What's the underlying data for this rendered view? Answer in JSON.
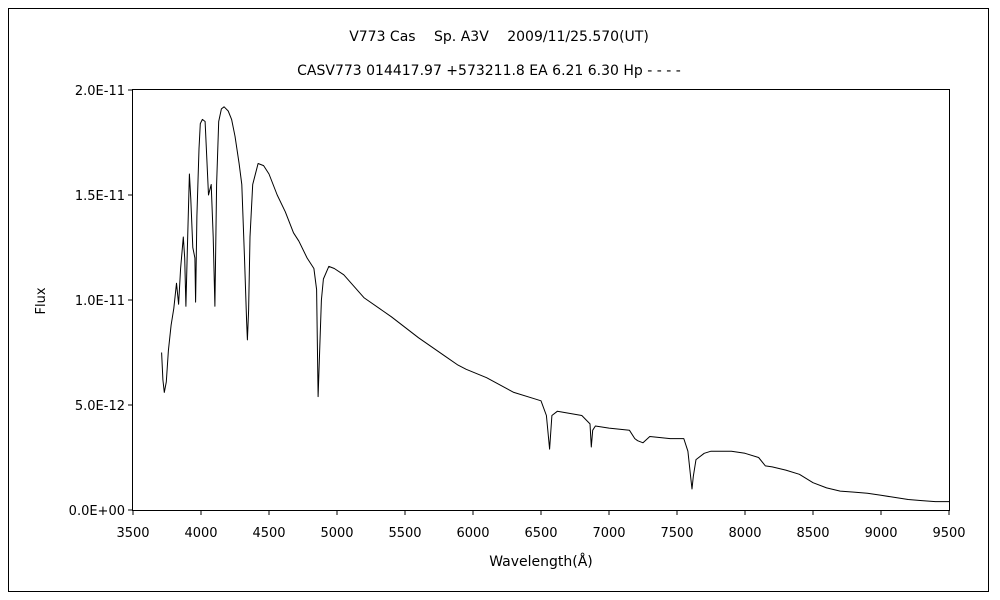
{
  "chart_data": {
    "type": "line",
    "title": "V773 Cas　 Sp. A3V　 2009/11/25.570(UT)",
    "subtitle": "CASV773 014417.97 +573211.8 EA 6.21 6.30 Hp - - - -",
    "xlabel": "Wavelength(Å)",
    "ylabel": "Flux",
    "xlim": [
      3500,
      9500
    ],
    "ylim": [
      0,
      2e-11
    ],
    "x_ticks": [
      3500,
      4000,
      4500,
      5000,
      5500,
      6000,
      6500,
      7000,
      7500,
      8000,
      8500,
      9000,
      9500
    ],
    "x_tick_labels": [
      "3500",
      "4000",
      "4500",
      "5000",
      "5500",
      "6000",
      "6500",
      "7000",
      "7500",
      "8000",
      "8500",
      "9000",
      "9500"
    ],
    "y_ticks": [
      0,
      5e-12,
      1e-11,
      1.5e-11,
      2e-11
    ],
    "y_tick_labels": [
      "0.0E+00",
      "5.0E-12",
      "1.0E-11",
      "1.5E-11",
      "2.0E-11"
    ],
    "grid": false,
    "legend": "none",
    "line_color": "#000000",
    "series": [
      {
        "x": [
          3710,
          3720,
          3730,
          3745,
          3760,
          3780,
          3800,
          3820,
          3835,
          3850,
          3870,
          3880,
          3889,
          3900,
          3915,
          3925,
          3940,
          3955,
          3960,
          3970,
          3985,
          3995,
          4010,
          4030,
          4055,
          4075,
          4090,
          4102,
          4115,
          4130,
          4150,
          4170,
          4200,
          4225,
          4250,
          4280,
          4300,
          4320,
          4335,
          4341,
          4350,
          4360,
          4380,
          4420,
          4460,
          4500,
          4560,
          4620,
          4680,
          4720,
          4780,
          4830,
          4850,
          4861,
          4872,
          4885,
          4900,
          4940,
          4980,
          5050,
          5200,
          5400,
          5600,
          5800,
          5890,
          5950,
          6100,
          6300,
          6450,
          6500,
          6540,
          6563,
          6580,
          6620,
          6800,
          6860,
          6870,
          6880,
          6900,
          7000,
          7150,
          7190,
          7210,
          7250,
          7300,
          7450,
          7550,
          7580,
          7600,
          7610,
          7620,
          7640,
          7700,
          7750,
          7900,
          8000,
          8100,
          8150,
          8200,
          8300,
          8400,
          8500,
          8600,
          8700,
          8800,
          8900,
          9000,
          9100,
          9200,
          9300,
          9400,
          9500
        ],
        "y": [
          7.5e-12,
          6.2e-12,
          5.6e-12,
          6.1e-12,
          7.6e-12,
          8.8e-12,
          9.6e-12,
          1.08e-11,
          9.8e-12,
          1.15e-11,
          1.3e-11,
          1.2e-11,
          9.7e-12,
          1.25e-11,
          1.6e-11,
          1.48e-11,
          1.25e-11,
          1.2e-11,
          9.9e-12,
          1.4e-11,
          1.72e-11,
          1.84e-11,
          1.86e-11,
          1.85e-11,
          1.5e-11,
          1.55e-11,
          1.3e-11,
          9.7e-12,
          1.55e-11,
          1.85e-11,
          1.91e-11,
          1.92e-11,
          1.9e-11,
          1.86e-11,
          1.78e-11,
          1.65e-11,
          1.55e-11,
          1.2e-11,
          9e-12,
          8.1e-12,
          9.5e-12,
          1.3e-11,
          1.55e-11,
          1.65e-11,
          1.64e-11,
          1.6e-11,
          1.5e-11,
          1.42e-11,
          1.32e-11,
          1.28e-11,
          1.2e-11,
          1.15e-11,
          1.05e-11,
          5.4e-12,
          7.5e-12,
          1e-11,
          1.1e-11,
          1.16e-11,
          1.15e-11,
          1.12e-11,
          1.01e-11,
          9.2e-12,
          8.2e-12,
          7.3e-12,
          6.9e-12,
          6.7e-12,
          6.3e-12,
          5.6e-12,
          5.3e-12,
          5.2e-12,
          4.5e-12,
          2.9e-12,
          4.5e-12,
          4.7e-12,
          4.5e-12,
          4.1e-12,
          3e-12,
          3.8e-12,
          4e-12,
          3.9e-12,
          3.8e-12,
          3.4e-12,
          3.3e-12,
          3.2e-12,
          3.5e-12,
          3.4e-12,
          3.4e-12,
          2.8e-12,
          1.6e-12,
          1e-12,
          1.6e-12,
          2.4e-12,
          2.7e-12,
          2.8e-12,
          2.8e-12,
          2.7e-12,
          2.5e-12,
          2.1e-12,
          2.05e-12,
          1.9e-12,
          1.7e-12,
          1.3e-12,
          1.05e-12,
          9e-13,
          8.5e-13,
          8e-13,
          7e-13,
          6e-13,
          5e-13,
          4.5e-13,
          4e-13,
          4e-13
        ]
      }
    ]
  }
}
